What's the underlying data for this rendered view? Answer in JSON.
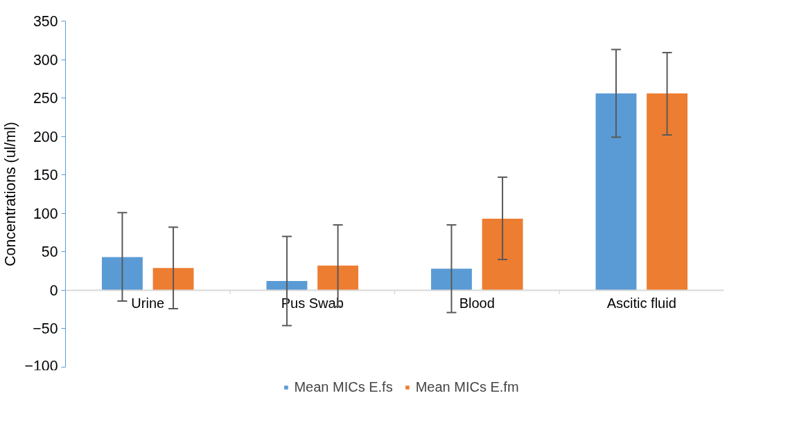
{
  "chart_data": {
    "type": "bar",
    "ylabel": "Concentrations (ul/ml)",
    "categories": [
      "Urine",
      "Pus Swab",
      "Blood",
      "Ascitic fluid"
    ],
    "series": [
      {
        "name": "Mean MICs E.fs",
        "color": "#5b9bd5",
        "values": [
          43,
          12,
          28,
          256
        ],
        "errors": [
          [
            -14,
            101
          ],
          [
            -46,
            70
          ],
          [
            -29,
            85
          ],
          [
            199,
            313
          ]
        ]
      },
      {
        "name": "Mean MICs E.fm",
        "color": "#ed7d31",
        "values": [
          29,
          32,
          93,
          256
        ],
        "errors": [
          [
            -24,
            82
          ],
          [
            -21,
            85
          ],
          [
            40,
            147
          ],
          [
            202,
            309
          ]
        ]
      }
    ],
    "ylim": [
      -100,
      350
    ],
    "yticks": [
      -100,
      -50,
      0,
      50,
      100,
      150,
      200,
      250,
      300,
      350
    ],
    "grid": false,
    "legend": "bottom"
  }
}
